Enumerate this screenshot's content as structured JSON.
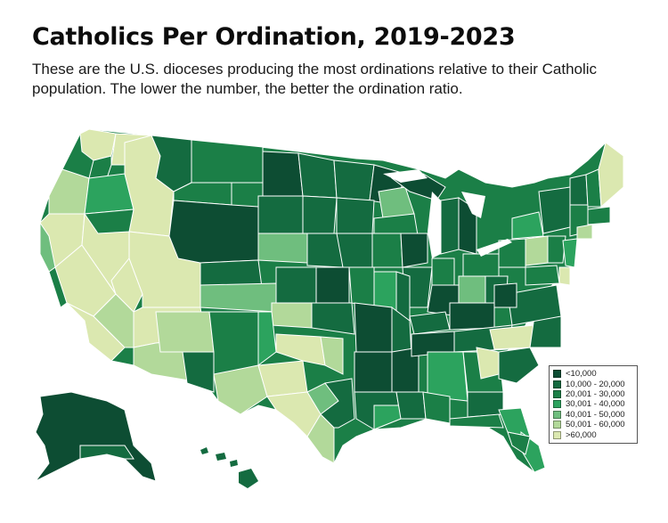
{
  "title": "Catholics Per Ordination, 2019-2023",
  "subtitle": "These are the U.S. dioceses producing the most ordinations relative to their Catholic population. The lower the number, the better the ordination ratio.",
  "legend": [
    {
      "label": "<10,000",
      "color": "#0d4d33"
    },
    {
      "label": "10,000 - 20,000",
      "color": "#146b40"
    },
    {
      "label": "20,001 - 30,000",
      "color": "#1b7f47"
    },
    {
      "label": "30,001 - 40,000",
      "color": "#2ca35e"
    },
    {
      "label": "40,001 - 50,000",
      "color": "#6fbe7e"
    },
    {
      "label": "50,001 - 60,000",
      "color": "#b2d99a"
    },
    {
      "label": ">60,000",
      "color": "#dbe8b0"
    }
  ]
}
